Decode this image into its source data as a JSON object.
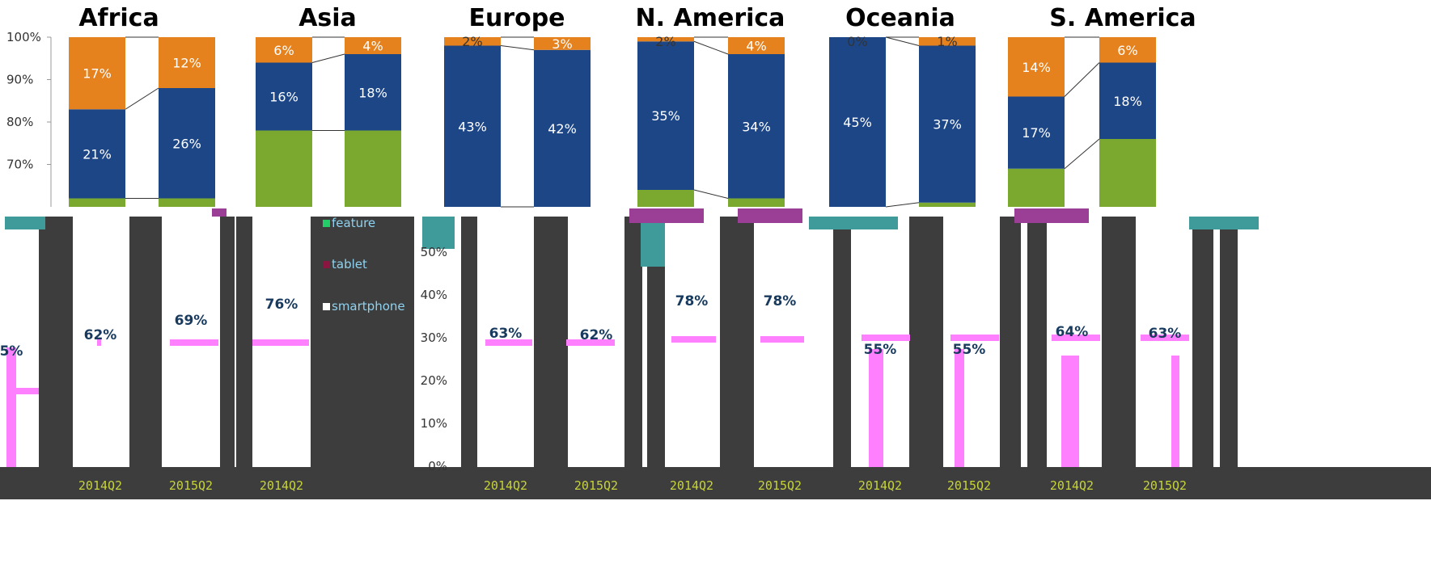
{
  "chart_data": {
    "type": "bar",
    "stacked": true,
    "colors": {
      "feature": "#7ba930",
      "tablet": "#1d4687",
      "smartphone": "#e6821e",
      "bottom_fill": "#3d3d3d",
      "accent_pink": "#ff80ff",
      "accent_teal": "#3f9a9a",
      "accent_purple": "#9b3f96"
    },
    "y_ticks": [
      "100%",
      "90%",
      "80%",
      "70%"
    ],
    "y_ticks_lower": [
      "50%",
      "40%",
      "30%",
      "20%",
      "10%",
      "0%"
    ],
    "ylim": [
      60,
      100
    ],
    "legend": [
      "feature",
      "tablet",
      "smartphone"
    ],
    "panels": [
      {
        "title": "Africa",
        "bars": [
          {
            "feature": 62,
            "tablet": 21,
            "smartphone": 17,
            "tablet_label": "21%",
            "smartphone_label": "17%",
            "bottom_label": "5%",
            "x_label": ""
          },
          {
            "feature": 62,
            "tablet": 26,
            "smartphone": 12,
            "tablet_label": "26%",
            "smartphone_label": "12%",
            "bottom_label": "62%",
            "x_label": "2014Q2"
          },
          {
            "bottom_label": "69%",
            "x_label": "2015Q2"
          }
        ]
      },
      {
        "title": "Asia",
        "bars": [
          {
            "feature": 78,
            "tablet": 16,
            "smartphone": 6,
            "tablet_label": "16%",
            "smartphone_label": "6%",
            "bottom_label": "76%",
            "x_label": "2014Q2"
          },
          {
            "feature": 78,
            "tablet": 18,
            "smartphone": 4,
            "tablet_label": "18%",
            "smartphone_label": "4%",
            "bottom_label": "",
            "x_label": ""
          }
        ]
      },
      {
        "title": "Europe",
        "bars": [
          {
            "feature": 55,
            "tablet": 43,
            "smartphone": 2,
            "tablet_label": "43%",
            "smartphone_label": "2%",
            "bottom_label": "63%",
            "x_label": "2014Q2"
          },
          {
            "feature": 55,
            "tablet": 42,
            "smartphone": 3,
            "tablet_label": "42%",
            "smartphone_label": "3%",
            "bottom_label": "62%",
            "x_label": "2015Q2"
          }
        ]
      },
      {
        "title": "N. America",
        "bars": [
          {
            "feature": 64,
            "tablet": 35,
            "smartphone": 2,
            "tablet_label": "35%",
            "smartphone_label": "2%",
            "bottom_label": "78%",
            "x_label": "2014Q2"
          },
          {
            "feature": 62,
            "tablet": 34,
            "smartphone": 4,
            "tablet_label": "34%",
            "smartphone_label": "4%",
            "bottom_label": "78%",
            "x_label": "2015Q2"
          }
        ]
      },
      {
        "title": "Oceania",
        "bars": [
          {
            "feature": 55,
            "tablet": 45,
            "smartphone": 0,
            "tablet_label": "45%",
            "smartphone_label": "0%",
            "bottom_label": "55%",
            "x_label": "2014Q2"
          },
          {
            "feature": 61,
            "tablet": 37,
            "smartphone": 1,
            "tablet_label": "37%",
            "smartphone_label": "1%",
            "bottom_label": "55%",
            "x_label": "2015Q2"
          }
        ]
      },
      {
        "title": "S. America",
        "bars": [
          {
            "feature": 69,
            "tablet": 17,
            "smartphone": 14,
            "tablet_label": "17%",
            "smartphone_label": "14%",
            "bottom_label": "64%",
            "x_label": "2014Q2"
          },
          {
            "feature": 76,
            "tablet": 18,
            "smartphone": 6,
            "tablet_label": "18%",
            "smartphone_label": "6%",
            "bottom_label": "63%",
            "x_label": "2015Q2"
          }
        ]
      }
    ]
  }
}
